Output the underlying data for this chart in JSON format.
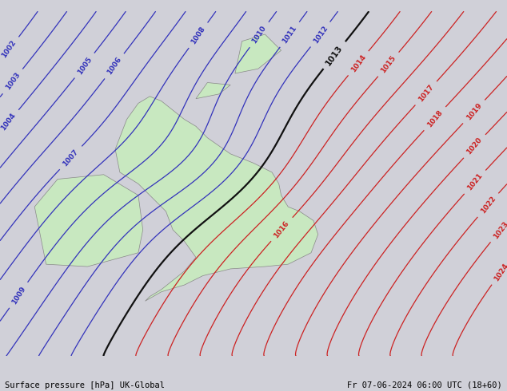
{
  "title_left": "Surface pressure [hPa] UK-Global",
  "title_right": "Fr 07-06-2024 06:00 UTC (18+60)",
  "background_color": "#d0d0d8",
  "sea_color": "#d0d0d8",
  "land_color": "#c8e8c0",
  "land_edge_color": "#888888",
  "blue_line_color": "#3333bb",
  "red_line_color": "#cc2222",
  "black_line_color": "#111111",
  "footer_color": "#000000",
  "figsize": [
    6.34,
    4.9
  ],
  "dpi": 100,
  "blue_levels": [
    1002,
    1003,
    1004,
    1005,
    1006,
    1007,
    1008,
    1009,
    1010,
    1011,
    1012
  ],
  "black_level": [
    1013
  ],
  "red_levels": [
    1014,
    1015,
    1016,
    1017,
    1018,
    1019,
    1020,
    1021,
    1022,
    1023,
    1024
  ],
  "xmin": -12,
  "xmax": 10,
  "ymin": 47.5,
  "ymax": 62.5
}
